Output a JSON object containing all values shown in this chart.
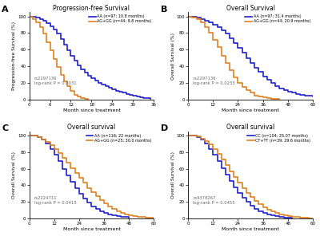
{
  "panels": [
    {
      "label": "A",
      "title": "Progression-free Survival",
      "ylabel": "Progression-free Survival (%)",
      "xlabel": "Month since treatment",
      "xlim": [
        0,
        36
      ],
      "xticks": [
        0,
        6,
        12,
        18,
        24,
        30,
        36
      ],
      "ylim": [
        0,
        105
      ],
      "yticks": [
        0,
        20,
        40,
        60,
        80,
        100
      ],
      "annotation": "rs2297136\nlog-rank P = 0.0031",
      "legend": [
        "AA (n=97; 10.8 months)",
        "AG+GG (n=44; 9.8 months)"
      ],
      "curve1_x": [
        0,
        1,
        2,
        3,
        4,
        5,
        6,
        7,
        8,
        9,
        10,
        11,
        12,
        13,
        14,
        15,
        16,
        17,
        18,
        19,
        20,
        21,
        22,
        23,
        24,
        25,
        26,
        27,
        28,
        29,
        30,
        31,
        32,
        33,
        34,
        35
      ],
      "curve1_y": [
        100,
        100,
        99,
        97,
        95,
        92,
        88,
        84,
        79,
        73,
        66,
        59,
        53,
        47,
        41,
        36,
        32,
        29,
        26,
        23,
        20,
        18,
        16,
        14,
        12,
        10,
        9,
        8,
        7,
        6,
        5,
        4,
        3,
        2,
        2,
        1
      ],
      "curve2_x": [
        0,
        1,
        2,
        3,
        4,
        5,
        6,
        7,
        8,
        9,
        10,
        11,
        12,
        13,
        14,
        15,
        16,
        17
      ],
      "curve2_y": [
        100,
        97,
        93,
        87,
        79,
        69,
        59,
        49,
        39,
        30,
        22,
        16,
        10,
        6,
        4,
        2,
        1,
        0
      ],
      "color1": "#2020cc",
      "color2": "#e08020"
    },
    {
      "label": "B",
      "title": "Overall Survival",
      "ylabel": "Overall Survival (%)",
      "xlabel": "Month since treatment",
      "xlim": [
        0,
        60
      ],
      "xticks": [
        0,
        12,
        24,
        36,
        48,
        60
      ],
      "ylim": [
        0,
        105
      ],
      "yticks": [
        0,
        20,
        40,
        60,
        80,
        100
      ],
      "annotation": "rs2297136\nlog-rank P = 0.0233",
      "legend": [
        "AA (n=97; 31.4 months)",
        "AG+GG (n=44; 20.9 months)"
      ],
      "curve1_x": [
        0,
        2,
        4,
        6,
        8,
        10,
        12,
        14,
        16,
        18,
        20,
        22,
        24,
        26,
        28,
        30,
        32,
        34,
        36,
        38,
        40,
        42,
        44,
        46,
        48,
        50,
        52,
        54,
        56,
        58,
        60
      ],
      "curve1_y": [
        100,
        100,
        99,
        97,
        95,
        93,
        90,
        87,
        83,
        79,
        74,
        68,
        62,
        56,
        50,
        44,
        38,
        33,
        28,
        24,
        20,
        16,
        13,
        11,
        9,
        8,
        7,
        6,
        5,
        5,
        4
      ],
      "curve2_x": [
        0,
        2,
        4,
        6,
        8,
        10,
        12,
        14,
        16,
        18,
        20,
        22,
        24,
        26,
        28,
        30,
        32,
        34,
        36,
        38,
        40,
        42,
        44
      ],
      "curve2_y": [
        100,
        99,
        97,
        93,
        87,
        80,
        72,
        63,
        53,
        44,
        35,
        27,
        20,
        15,
        11,
        8,
        5,
        4,
        3,
        2,
        1,
        1,
        0
      ],
      "color1": "#2020cc",
      "color2": "#e08020"
    },
    {
      "label": "C",
      "title": "Overall survival",
      "ylabel": "Overall Survival (%)",
      "xlabel": "Month since treatment",
      "xlim": [
        0,
        60
      ],
      "xticks": [
        0,
        12,
        24,
        36,
        48,
        60
      ],
      "ylim": [
        0,
        105
      ],
      "yticks": [
        0,
        20,
        40,
        60,
        80,
        100
      ],
      "annotation": "rs2224711\nlog-rank P = 0.0415",
      "legend": [
        "AA (n=116; 22 months)",
        "AG+GG (n=25; 30.0 months)"
      ],
      "curve1_x": [
        0,
        2,
        4,
        6,
        8,
        10,
        12,
        14,
        16,
        18,
        20,
        22,
        24,
        26,
        28,
        30,
        32,
        34,
        36,
        38,
        40,
        42,
        44,
        46,
        48
      ],
      "curve1_y": [
        100,
        100,
        98,
        95,
        90,
        84,
        77,
        69,
        60,
        52,
        44,
        37,
        30,
        24,
        19,
        15,
        12,
        9,
        7,
        5,
        4,
        3,
        2,
        2,
        1
      ],
      "curve2_x": [
        0,
        2,
        4,
        6,
        8,
        10,
        12,
        14,
        16,
        18,
        20,
        22,
        24,
        26,
        28,
        30,
        32,
        34,
        36,
        38,
        40,
        42,
        44,
        46,
        48,
        50,
        52,
        54,
        56,
        58,
        60
      ],
      "curve2_y": [
        100,
        100,
        98,
        95,
        92,
        88,
        84,
        79,
        73,
        67,
        61,
        55,
        49,
        43,
        37,
        32,
        27,
        22,
        18,
        15,
        12,
        9,
        7,
        5,
        4,
        3,
        2,
        2,
        1,
        1,
        0
      ],
      "color1": "#2020cc",
      "color2": "#e08020"
    },
    {
      "label": "D",
      "title": "Overall survival",
      "ylabel": "Overall Survival (%)",
      "xlabel": "Month since treatment",
      "xlim": [
        0,
        60
      ],
      "xticks": [
        0,
        12,
        24,
        36,
        48,
        60
      ],
      "ylim": [
        0,
        105
      ],
      "yticks": [
        0,
        20,
        40,
        60,
        80,
        100
      ],
      "annotation": "rs9378267\nlog-rank P = 0.0455",
      "legend": [
        "CC (n=104; 25.07 months)",
        "CT+TT (n=39; 29.6 months)"
      ],
      "curve1_x": [
        0,
        2,
        4,
        6,
        8,
        10,
        12,
        14,
        16,
        18,
        20,
        22,
        24,
        26,
        28,
        30,
        32,
        34,
        36,
        38,
        40,
        42,
        44,
        46,
        48,
        50
      ],
      "curve1_y": [
        100,
        100,
        98,
        95,
        90,
        84,
        77,
        69,
        61,
        53,
        45,
        38,
        31,
        25,
        20,
        16,
        12,
        9,
        7,
        5,
        4,
        3,
        2,
        1,
        1,
        0
      ],
      "curve2_x": [
        0,
        2,
        4,
        6,
        8,
        10,
        12,
        14,
        16,
        18,
        20,
        22,
        24,
        26,
        28,
        30,
        32,
        34,
        36,
        38,
        40,
        42,
        44,
        46,
        48,
        50,
        52,
        54,
        56,
        58,
        60
      ],
      "curve2_y": [
        100,
        100,
        99,
        96,
        93,
        89,
        84,
        78,
        71,
        64,
        57,
        50,
        43,
        37,
        31,
        26,
        21,
        17,
        14,
        11,
        9,
        7,
        5,
        4,
        3,
        2,
        2,
        1,
        1,
        0,
        0
      ],
      "color1": "#2020cc",
      "color2": "#e08020"
    }
  ],
  "fig_bg": "#ffffff",
  "ax_bg": "#ffffff"
}
